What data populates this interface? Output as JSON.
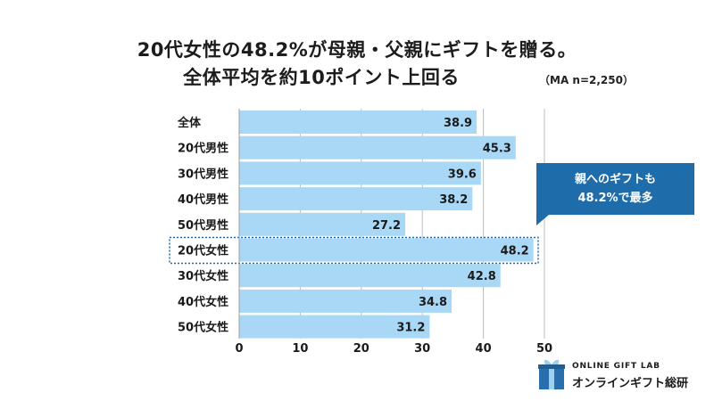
{
  "title": {
    "line1": "20代女性の48.2%が母親・父親にギフトを贈る。",
    "line2": "全体平均を約10ポイント上回る"
  },
  "note": "（MA n=2,250）",
  "chart_data": {
    "type": "bar",
    "orientation": "horizontal",
    "categories": [
      "全体",
      "20代男性",
      "30代男性",
      "40代男性",
      "50代男性",
      "20代女性",
      "30代女性",
      "40代女性",
      "50代女性"
    ],
    "values": [
      38.9,
      45.3,
      39.6,
      38.2,
      27.2,
      48.2,
      42.8,
      34.8,
      31.2
    ],
    "value_labels": [
      "38.9",
      "45.3",
      "39.6",
      "38.2",
      "27.2",
      "48.2",
      "42.8",
      "34.8",
      "31.2"
    ],
    "highlight": "20代女性",
    "xlim": [
      0,
      50
    ],
    "ticks": [
      "0",
      "10",
      "20",
      "30",
      "40",
      "50"
    ],
    "grid": true,
    "colors": {
      "bar": "#a9d8f7",
      "grid": "#bdbdbd",
      "highlight_border": "#1f6cab"
    }
  },
  "callout": {
    "line1": "親へのギフトも",
    "line2": "48.2%で最多",
    "color": "#1f6cab"
  },
  "logo": {
    "en": "ONLINE GIFT LAB",
    "ja": "オンラインギフト総研",
    "icon": "gift-box-icon"
  }
}
